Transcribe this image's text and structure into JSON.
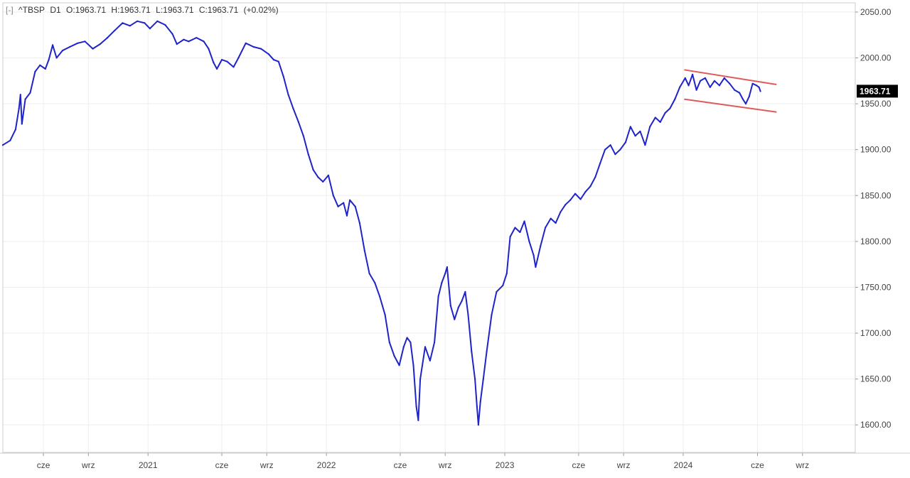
{
  "header": {
    "collapse": "[-]",
    "symbol": "^TBSP",
    "timeframe": "D1",
    "open": "O:1963.71",
    "high": "H:1963.71",
    "low": "L:1963.71",
    "close": "C:1963.71",
    "change": "(+0.02%)"
  },
  "colors": {
    "series": "#1f24c8",
    "trendline": "#e05a5a",
    "grid": "#eeeeee",
    "axis": "#999999",
    "price_tag_bg": "#000000"
  },
  "chart_data": {
    "type": "line",
    "title": "",
    "xlabel": "",
    "ylabel": "",
    "ylim": [
      1570,
      2060
    ],
    "xlim": [
      "2020-03-10",
      "2024-12-18"
    ],
    "y_ticks": [
      "2050.00",
      "2000.00",
      "1950.00",
      "1900.00",
      "1850.00",
      "1800.00",
      "1750.00",
      "1700.00",
      "1650.00",
      "1600.00"
    ],
    "x_ticks": [
      {
        "date": "2020-06-01",
        "label": "cze"
      },
      {
        "date": "2020-09-01",
        "label": "wrz"
      },
      {
        "date": "2021-01-01",
        "label": "2021"
      },
      {
        "date": "2021-06-01",
        "label": "cze"
      },
      {
        "date": "2021-09-01",
        "label": "wrz"
      },
      {
        "date": "2022-01-01",
        "label": "2022"
      },
      {
        "date": "2022-06-01",
        "label": "cze"
      },
      {
        "date": "2022-09-01",
        "label": "wrz"
      },
      {
        "date": "2023-01-01",
        "label": "2023"
      },
      {
        "date": "2023-06-01",
        "label": "cze"
      },
      {
        "date": "2023-09-01",
        "label": "wrz"
      },
      {
        "date": "2024-01-01",
        "label": "2024"
      },
      {
        "date": "2024-06-01",
        "label": "cze"
      },
      {
        "date": "2024-09-01",
        "label": "wrz"
      }
    ],
    "grid": true,
    "last_value": "1963.71",
    "series": [
      {
        "values": [
          [
            "2020-03-10",
            1905
          ],
          [
            "2020-03-25",
            1910
          ],
          [
            "2020-04-05",
            1922
          ],
          [
            "2020-04-12",
            1945
          ],
          [
            "2020-04-15",
            1960
          ],
          [
            "2020-04-18",
            1928
          ],
          [
            "2020-04-25",
            1955
          ],
          [
            "2020-05-05",
            1962
          ],
          [
            "2020-05-15",
            1985
          ],
          [
            "2020-05-25",
            1992
          ],
          [
            "2020-06-05",
            1988
          ],
          [
            "2020-06-12",
            1998
          ],
          [
            "2020-06-20",
            2014
          ],
          [
            "2020-06-28",
            2000
          ],
          [
            "2020-07-10",
            2008
          ],
          [
            "2020-07-25",
            2012
          ],
          [
            "2020-08-10",
            2016
          ],
          [
            "2020-08-25",
            2018
          ],
          [
            "2020-09-10",
            2010
          ],
          [
            "2020-09-25",
            2015
          ],
          [
            "2020-10-10",
            2022
          ],
          [
            "2020-10-25",
            2030
          ],
          [
            "2020-11-10",
            2038
          ],
          [
            "2020-11-25",
            2035
          ],
          [
            "2020-12-10",
            2040
          ],
          [
            "2020-12-25",
            2038
          ],
          [
            "2021-01-05",
            2032
          ],
          [
            "2021-01-20",
            2040
          ],
          [
            "2021-02-05",
            2036
          ],
          [
            "2021-02-20",
            2026
          ],
          [
            "2021-03-01",
            2015
          ],
          [
            "2021-03-15",
            2020
          ],
          [
            "2021-03-25",
            2018
          ],
          [
            "2021-04-10",
            2022
          ],
          [
            "2021-04-25",
            2018
          ],
          [
            "2021-05-05",
            2010
          ],
          [
            "2021-05-15",
            1995
          ],
          [
            "2021-05-22",
            1988
          ],
          [
            "2021-06-01",
            1998
          ],
          [
            "2021-06-12",
            1996
          ],
          [
            "2021-06-25",
            1990
          ],
          [
            "2021-07-05",
            2000
          ],
          [
            "2021-07-20",
            2016
          ],
          [
            "2021-08-05",
            2012
          ],
          [
            "2021-08-20",
            2010
          ],
          [
            "2021-09-05",
            2004
          ],
          [
            "2021-09-15",
            1998
          ],
          [
            "2021-09-25",
            1996
          ],
          [
            "2021-10-05",
            1980
          ],
          [
            "2021-10-15",
            1960
          ],
          [
            "2021-10-25",
            1945
          ],
          [
            "2021-11-05",
            1930
          ],
          [
            "2021-11-15",
            1915
          ],
          [
            "2021-11-25",
            1895
          ],
          [
            "2021-12-05",
            1878
          ],
          [
            "2021-12-15",
            1870
          ],
          [
            "2021-12-25",
            1865
          ],
          [
            "2022-01-05",
            1872
          ],
          [
            "2022-01-15",
            1850
          ],
          [
            "2022-01-25",
            1838
          ],
          [
            "2022-02-05",
            1842
          ],
          [
            "2022-02-12",
            1828
          ],
          [
            "2022-02-18",
            1845
          ],
          [
            "2022-03-01",
            1838
          ],
          [
            "2022-03-10",
            1820
          ],
          [
            "2022-03-20",
            1790
          ],
          [
            "2022-03-30",
            1765
          ],
          [
            "2022-04-10",
            1755
          ],
          [
            "2022-04-20",
            1740
          ],
          [
            "2022-05-01",
            1720
          ],
          [
            "2022-05-10",
            1690
          ],
          [
            "2022-05-20",
            1675
          ],
          [
            "2022-05-30",
            1665
          ],
          [
            "2022-06-08",
            1685
          ],
          [
            "2022-06-15",
            1695
          ],
          [
            "2022-06-22",
            1690
          ],
          [
            "2022-06-28",
            1665
          ],
          [
            "2022-07-04",
            1620
          ],
          [
            "2022-07-08",
            1605
          ],
          [
            "2022-07-12",
            1650
          ],
          [
            "2022-07-22",
            1685
          ],
          [
            "2022-08-01",
            1670
          ],
          [
            "2022-08-10",
            1690
          ],
          [
            "2022-08-18",
            1740
          ],
          [
            "2022-08-25",
            1755
          ],
          [
            "2022-09-01",
            1765
          ],
          [
            "2022-09-05",
            1772
          ],
          [
            "2022-09-12",
            1730
          ],
          [
            "2022-09-20",
            1715
          ],
          [
            "2022-09-28",
            1728
          ],
          [
            "2022-10-05",
            1735
          ],
          [
            "2022-10-12",
            1745
          ],
          [
            "2022-10-18",
            1720
          ],
          [
            "2022-10-25",
            1680
          ],
          [
            "2022-11-01",
            1650
          ],
          [
            "2022-11-05",
            1620
          ],
          [
            "2022-11-08",
            1600
          ],
          [
            "2022-11-12",
            1625
          ],
          [
            "2022-11-18",
            1650
          ],
          [
            "2022-11-25",
            1680
          ],
          [
            "2022-12-05",
            1720
          ],
          [
            "2022-12-15",
            1745
          ],
          [
            "2022-12-28",
            1752
          ],
          [
            "2023-01-05",
            1765
          ],
          [
            "2023-01-12",
            1805
          ],
          [
            "2023-01-22",
            1815
          ],
          [
            "2023-02-01",
            1810
          ],
          [
            "2023-02-10",
            1822
          ],
          [
            "2023-02-20",
            1800
          ],
          [
            "2023-03-01",
            1785
          ],
          [
            "2023-03-05",
            1772
          ],
          [
            "2023-03-15",
            1795
          ],
          [
            "2023-03-25",
            1815
          ],
          [
            "2023-04-05",
            1825
          ],
          [
            "2023-04-15",
            1820
          ],
          [
            "2023-04-25",
            1832
          ],
          [
            "2023-05-05",
            1840
          ],
          [
            "2023-05-15",
            1845
          ],
          [
            "2023-05-25",
            1852
          ],
          [
            "2023-06-05",
            1846
          ],
          [
            "2023-06-15",
            1854
          ],
          [
            "2023-06-25",
            1860
          ],
          [
            "2023-07-05",
            1870
          ],
          [
            "2023-07-15",
            1885
          ],
          [
            "2023-07-25",
            1900
          ],
          [
            "2023-08-05",
            1905
          ],
          [
            "2023-08-15",
            1895
          ],
          [
            "2023-08-25",
            1900
          ],
          [
            "2023-09-05",
            1908
          ],
          [
            "2023-09-15",
            1925
          ],
          [
            "2023-09-25",
            1915
          ],
          [
            "2023-10-05",
            1920
          ],
          [
            "2023-10-15",
            1905
          ],
          [
            "2023-10-25",
            1925
          ],
          [
            "2023-11-05",
            1935
          ],
          [
            "2023-11-15",
            1930
          ],
          [
            "2023-11-25",
            1940
          ],
          [
            "2023-12-05",
            1945
          ],
          [
            "2023-12-15",
            1955
          ],
          [
            "2023-12-25",
            1968
          ],
          [
            "2024-01-05",
            1978
          ],
          [
            "2024-01-12",
            1970
          ],
          [
            "2024-01-20",
            1982
          ],
          [
            "2024-01-28",
            1965
          ],
          [
            "2024-02-05",
            1975
          ],
          [
            "2024-02-15",
            1978
          ],
          [
            "2024-02-25",
            1968
          ],
          [
            "2024-03-05",
            1975
          ],
          [
            "2024-03-15",
            1970
          ],
          [
            "2024-03-25",
            1978
          ],
          [
            "2024-04-05",
            1972
          ],
          [
            "2024-04-15",
            1965
          ],
          [
            "2024-04-25",
            1962
          ],
          [
            "2024-05-02",
            1955
          ],
          [
            "2024-05-08",
            1950
          ],
          [
            "2024-05-15",
            1958
          ],
          [
            "2024-05-22",
            1972
          ],
          [
            "2024-05-30",
            1970
          ],
          [
            "2024-06-04",
            1968
          ],
          [
            "2024-06-07",
            1963.71
          ]
        ]
      }
    ],
    "trendlines": [
      {
        "x1": "2024-01-03",
        "y1": 1987,
        "x2": "2024-07-10",
        "y2": 1971
      },
      {
        "x1": "2024-01-03",
        "y1": 1955,
        "x2": "2024-07-10",
        "y2": 1941
      }
    ]
  }
}
